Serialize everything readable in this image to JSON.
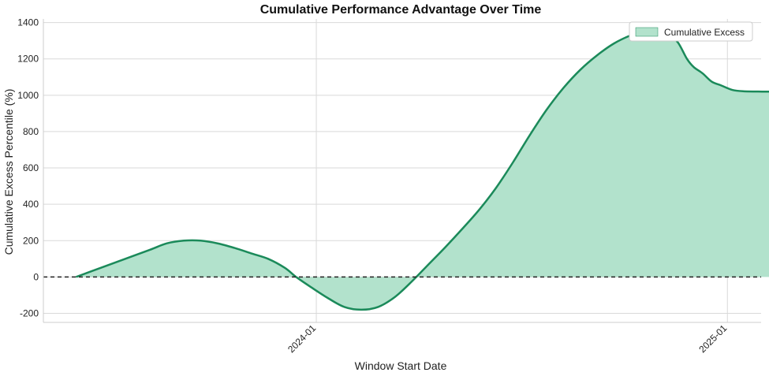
{
  "chart_data": {
    "type": "area",
    "title": "Cumulative Performance Advantage Over Time",
    "xlabel": "Window Start Date",
    "ylabel": "Cumulative Excess Percentile (%)",
    "x_ticks": [
      "2024-01",
      "2025-01"
    ],
    "x_tick_dates": [
      "2024-01-01",
      "2025-01-01"
    ],
    "xlim": [
      "2023-05-03",
      "2025-01-31"
    ],
    "ylim": [
      -250,
      1420
    ],
    "y_ticks": [
      -200,
      0,
      200,
      400,
      600,
      800,
      1000,
      1200,
      1400
    ],
    "grid": true,
    "baseline": 0,
    "legend_position": "top-right",
    "series": [
      {
        "name": "Cumulative Excess",
        "color": "#1b8a5a",
        "fill": "#b2e2cc",
        "points": [
          [
            "2023-06-01",
            0
          ],
          [
            "2023-06-23",
            50
          ],
          [
            "2023-07-15",
            100
          ],
          [
            "2023-08-06",
            150
          ],
          [
            "2023-08-21",
            185
          ],
          [
            "2023-09-05",
            200
          ],
          [
            "2023-09-20",
            200
          ],
          [
            "2023-10-05",
            185
          ],
          [
            "2023-10-20",
            160
          ],
          [
            "2023-11-04",
            130
          ],
          [
            "2023-11-19",
            100
          ],
          [
            "2023-12-04",
            50
          ],
          [
            "2023-12-14",
            0
          ],
          [
            "2023-12-27",
            -55
          ],
          [
            "2024-01-11",
            -115
          ],
          [
            "2024-01-26",
            -165
          ],
          [
            "2024-02-10",
            -180
          ],
          [
            "2024-02-25",
            -165
          ],
          [
            "2024-03-11",
            -110
          ],
          [
            "2024-03-26",
            -25
          ],
          [
            "2024-04-10",
            70
          ],
          [
            "2024-04-25",
            165
          ],
          [
            "2024-05-10",
            265
          ],
          [
            "2024-05-25",
            370
          ],
          [
            "2024-06-09",
            490
          ],
          [
            "2024-06-24",
            630
          ],
          [
            "2024-07-09",
            780
          ],
          [
            "2024-07-24",
            920
          ],
          [
            "2024-08-08",
            1040
          ],
          [
            "2024-08-23",
            1140
          ],
          [
            "2024-09-07",
            1220
          ],
          [
            "2024-09-22",
            1285
          ],
          [
            "2024-10-07",
            1330
          ],
          [
            "2024-10-20",
            1355
          ],
          [
            "2024-10-31",
            1355
          ],
          [
            "2024-11-10",
            1330
          ],
          [
            "2024-11-18",
            1290
          ],
          [
            "2024-11-26",
            1200
          ],
          [
            "2024-12-02",
            1155
          ],
          [
            "2024-12-10",
            1120
          ],
          [
            "2024-12-18",
            1075
          ],
          [
            "2024-12-26",
            1055
          ],
          [
            "2025-01-05",
            1030
          ],
          [
            "2025-01-15",
            1022
          ],
          [
            "2025-02-01",
            1020
          ],
          [
            "2025-02-05",
            1020
          ],
          [
            "2025-02-15",
            1020
          ]
        ]
      }
    ]
  }
}
